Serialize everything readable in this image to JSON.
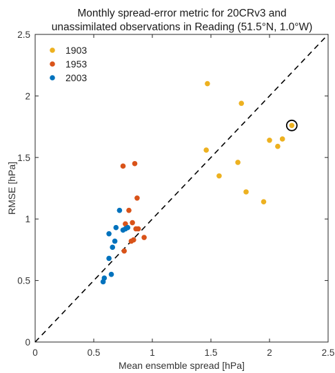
{
  "chart_data": {
    "type": "scatter",
    "title": "Monthly spread-error metric for 20CRv3 and unassimilated observations in Reading (51.5°N, 1.0°W)",
    "title_lines": [
      "Monthly spread-error metric for 20CRv3 and",
      "unassimilated observations in Reading (51.5°N, 1.0°W)"
    ],
    "xlabel": "Mean ensemble spread [hPa]",
    "ylabel": "RMSE [hPa]",
    "xlim": [
      0,
      2.5
    ],
    "ylim": [
      0,
      2.5
    ],
    "xticks": [
      0,
      0.5,
      1,
      1.5,
      2,
      2.5
    ],
    "yticks": [
      0,
      0.5,
      1,
      1.5,
      2,
      2.5
    ],
    "xtick_labels": [
      "0",
      "0.5",
      "1",
      "1.5",
      "2",
      "2.5"
    ],
    "ytick_labels": [
      "0",
      "0.5",
      "1",
      "1.5",
      "2",
      "2.5"
    ],
    "grid": false,
    "legend_position": "top-left",
    "reference_line": {
      "style": "dashed",
      "color": "#000000",
      "x": [
        0,
        2.5
      ],
      "y": [
        0,
        2.5
      ]
    },
    "highlighted_point": {
      "series": "1903",
      "x": 2.19,
      "y": 1.76
    },
    "series": [
      {
        "name": "1903",
        "color": "#EDB120",
        "points": [
          {
            "x": 1.47,
            "y": 2.1
          },
          {
            "x": 1.76,
            "y": 1.94
          },
          {
            "x": 2.19,
            "y": 1.76
          },
          {
            "x": 2.11,
            "y": 1.65
          },
          {
            "x": 2.0,
            "y": 1.64
          },
          {
            "x": 2.07,
            "y": 1.59
          },
          {
            "x": 1.46,
            "y": 1.56
          },
          {
            "x": 1.73,
            "y": 1.46
          },
          {
            "x": 1.57,
            "y": 1.35
          },
          {
            "x": 1.8,
            "y": 1.22
          },
          {
            "x": 1.95,
            "y": 1.14
          }
        ]
      },
      {
        "name": "1953",
        "color": "#D95319",
        "points": [
          {
            "x": 0.75,
            "y": 1.43
          },
          {
            "x": 0.85,
            "y": 1.45
          },
          {
            "x": 0.87,
            "y": 1.17
          },
          {
            "x": 0.8,
            "y": 1.07
          },
          {
            "x": 0.83,
            "y": 0.97
          },
          {
            "x": 0.77,
            "y": 0.96
          },
          {
            "x": 0.86,
            "y": 0.92
          },
          {
            "x": 0.88,
            "y": 0.92
          },
          {
            "x": 0.93,
            "y": 0.85
          },
          {
            "x": 0.82,
            "y": 0.82
          },
          {
            "x": 0.84,
            "y": 0.83
          },
          {
            "x": 0.76,
            "y": 0.74
          }
        ]
      },
      {
        "name": "2003",
        "color": "#0072BD",
        "points": [
          {
            "x": 0.72,
            "y": 1.07
          },
          {
            "x": 0.79,
            "y": 0.93
          },
          {
            "x": 0.77,
            "y": 0.92
          },
          {
            "x": 0.75,
            "y": 0.91
          },
          {
            "x": 0.69,
            "y": 0.93
          },
          {
            "x": 0.63,
            "y": 0.88
          },
          {
            "x": 0.68,
            "y": 0.82
          },
          {
            "x": 0.66,
            "y": 0.77
          },
          {
            "x": 0.63,
            "y": 0.68
          },
          {
            "x": 0.65,
            "y": 0.55
          },
          {
            "x": 0.59,
            "y": 0.52
          },
          {
            "x": 0.58,
            "y": 0.49
          }
        ]
      }
    ]
  }
}
